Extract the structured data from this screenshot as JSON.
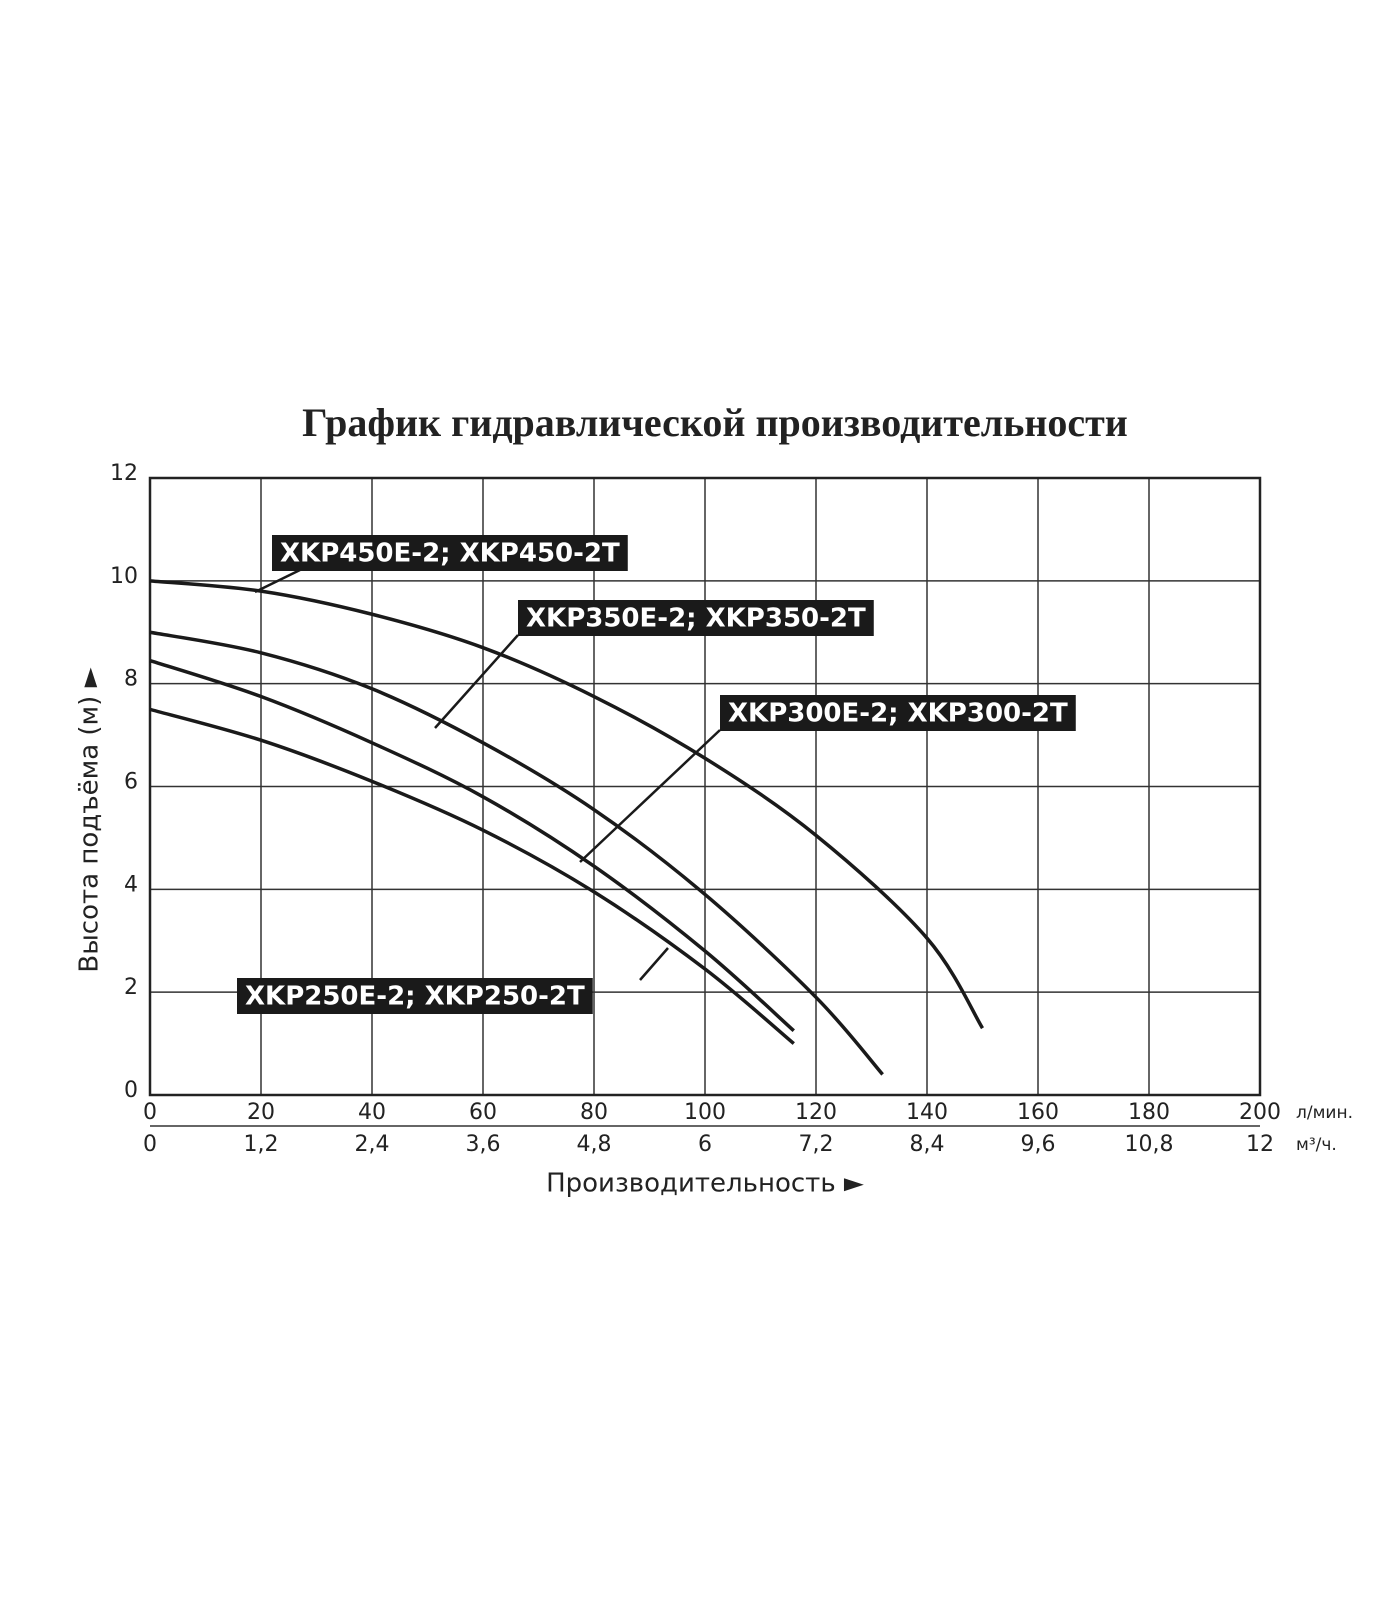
{
  "chart_data": {
    "type": "line",
    "title": "График гидравлической производительности",
    "x_label": "Производительность ►",
    "y_label": "Высота подъёма (м) ►",
    "x_unit": "л/мин.",
    "x2_unit": "м³/ч.",
    "xlim": [
      0,
      200
    ],
    "xticks": [
      0,
      20,
      40,
      60,
      80,
      100,
      120,
      140,
      160,
      180,
      200
    ],
    "x2lim": [
      0,
      12
    ],
    "x2ticks": [
      0,
      {
        "value": 1.2,
        "label": "1,2"
      },
      {
        "value": 2.4,
        "label": "2,4"
      },
      {
        "value": 3.6,
        "label": "3,6"
      },
      {
        "value": 4.8,
        "label": "4,8"
      },
      6,
      {
        "value": 7.2,
        "label": "7,2"
      },
      {
        "value": 8.4,
        "label": "8,4"
      },
      {
        "value": 9.6,
        "label": "9,6"
      },
      {
        "value": 10.8,
        "label": "10,8"
      },
      12
    ],
    "ylim": [
      0,
      12
    ],
    "yticks": [
      0,
      2,
      4,
      6,
      8,
      10,
      12
    ],
    "grid": true,
    "series": [
      {
        "name": "XKP450E-2; XKP450-2T",
        "color": "#1a1a1a",
        "x": [
          0,
          20,
          40,
          60,
          80,
          100,
          120,
          140,
          150
        ],
        "values": [
          10,
          9.8,
          9.35,
          8.7,
          7.75,
          6.55,
          5.05,
          3.05,
          1.3
        ]
      },
      {
        "name": "XKP350E-2; XKP350-2T",
        "color": "#1a1a1a",
        "x": [
          0,
          20,
          40,
          60,
          80,
          100,
          120,
          132
        ],
        "values": [
          9,
          8.6,
          7.9,
          6.85,
          5.55,
          3.9,
          1.9,
          0.4
        ]
      },
      {
        "name": "XKP300E-2; XKP300-2T",
        "color": "#1a1a1a",
        "x": [
          0,
          20,
          40,
          60,
          80,
          100,
          116
        ],
        "values": [
          8.45,
          7.75,
          6.85,
          5.8,
          4.45,
          2.8,
          1.25
        ]
      },
      {
        "name": "XKP250E-2; XKP250-2T",
        "color": "#1a1a1a",
        "x": [
          0,
          20,
          40,
          60,
          80,
          100,
          116
        ],
        "values": [
          7.5,
          6.9,
          6.1,
          5.15,
          3.95,
          2.45,
          1.0
        ]
      }
    ]
  }
}
